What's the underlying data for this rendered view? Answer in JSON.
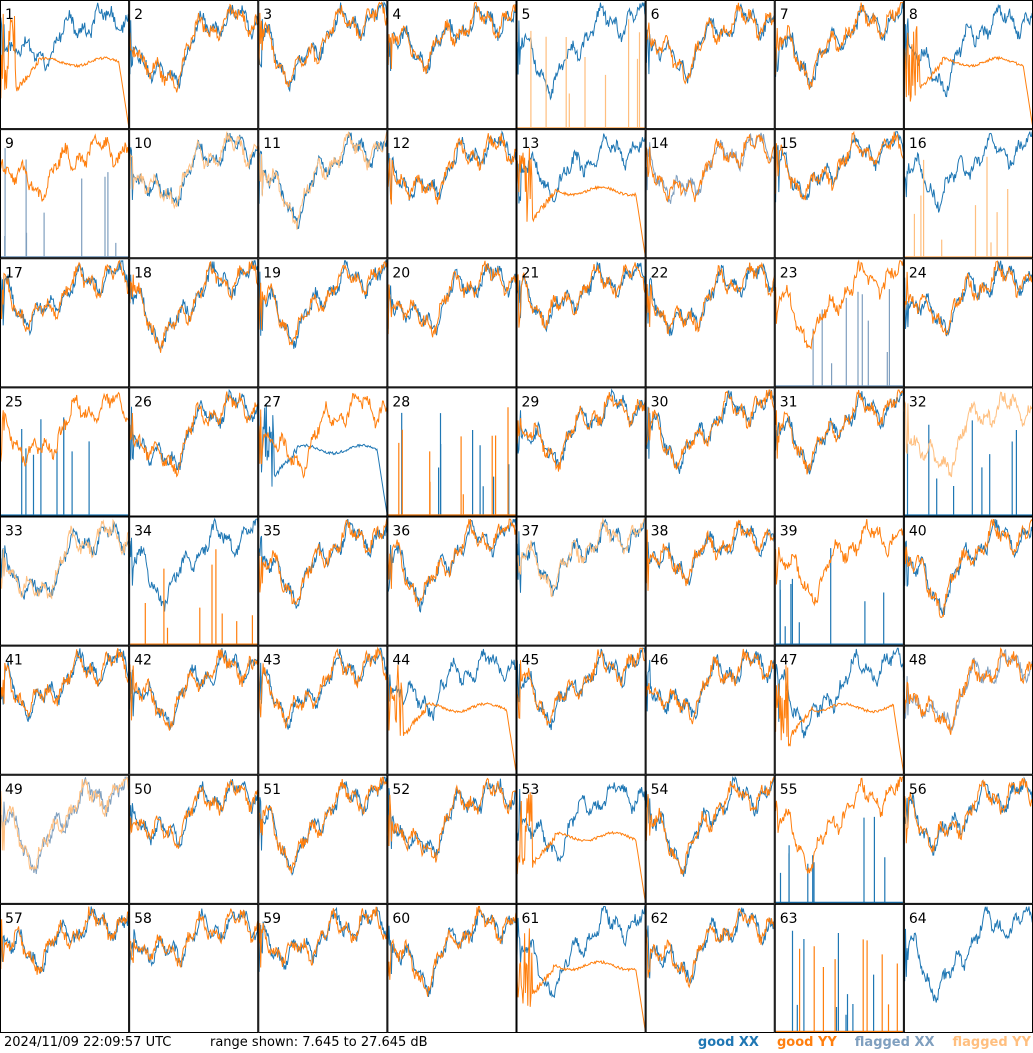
{
  "chart_data": {
    "type": "line",
    "panel_numbers": [
      "1",
      "2",
      "3",
      "4",
      "5",
      "6",
      "7",
      "8",
      "9",
      "10",
      "11",
      "12",
      "13",
      "14",
      "15",
      "16",
      "17",
      "18",
      "19",
      "20",
      "21",
      "22",
      "23",
      "24",
      "25",
      "26",
      "27",
      "28",
      "29",
      "30",
      "31",
      "32",
      "33",
      "34",
      "35",
      "36",
      "37",
      "38",
      "39",
      "40",
      "41",
      "42",
      "43",
      "44",
      "45",
      "46",
      "47",
      "48",
      "49",
      "50",
      "51",
      "52",
      "53",
      "54",
      "55",
      "56",
      "57",
      "58",
      "59",
      "60",
      "61",
      "62",
      "63",
      "64"
    ],
    "grid": {
      "rows": 8,
      "cols": 8
    },
    "ylim": [
      7.645,
      27.645
    ],
    "series": [
      {
        "name": "good XX",
        "color": "#1f77b4"
      },
      {
        "name": "good YY",
        "color": "#ff7f0e"
      },
      {
        "name": "flagged XX",
        "color": "#7f9fbf"
      },
      {
        "name": "flagged YY",
        "color": "#ffbf7f"
      }
    ],
    "panel_state": {
      "1": {
        "xx": "good",
        "yy": "broken"
      },
      "5": {
        "xx": "good",
        "yy": "flagged-spiky"
      },
      "8": {
        "xx": "good",
        "yy": "broken"
      },
      "9": {
        "xx": "flagged-spiky",
        "yy": "good"
      },
      "10": {
        "xx": "good",
        "yy": "flagged"
      },
      "11": {
        "xx": "good",
        "yy": "flagged"
      },
      "12": {
        "xx": "good",
        "yy": "good"
      },
      "13": {
        "xx": "good",
        "yy": "broken"
      },
      "14": {
        "xx": "flagged",
        "yy": "good"
      },
      "16": {
        "xx": "good",
        "yy": "flagged-spiky"
      },
      "23": {
        "xx": "flagged-spiky",
        "yy": "good"
      },
      "25": {
        "xx": "spiky",
        "yy": "good"
      },
      "27": {
        "xx": "broken",
        "yy": "good"
      },
      "28": {
        "xx": "spiky",
        "yy": "spiky"
      },
      "32": {
        "xx": "spiky",
        "yy": "flagged"
      },
      "33": {
        "xx": "good",
        "yy": "flagged"
      },
      "34": {
        "xx": "good",
        "yy": "spiky"
      },
      "37": {
        "xx": "good",
        "yy": "flagged"
      },
      "39": {
        "xx": "spiky",
        "yy": "good"
      },
      "44": {
        "xx": "good",
        "yy": "broken"
      },
      "47": {
        "xx": "good",
        "yy": "broken"
      },
      "48": {
        "xx": "flagged",
        "yy": "good"
      },
      "49": {
        "xx": "flagged",
        "yy": "flagged"
      },
      "53": {
        "xx": "good",
        "yy": "broken"
      },
      "55": {
        "xx": "spiky",
        "yy": "good"
      },
      "61": {
        "xx": "good",
        "yy": "broken"
      },
      "63": {
        "xx": "spiky",
        "yy": "spiky"
      },
      "64": {
        "xx": "good",
        "yy": "none"
      }
    }
  },
  "footer": {
    "timestamp": "2024/11/09 22:09:57 UTC",
    "range_text": "range shown: 7.645 to 27.645 dB"
  },
  "legend": [
    {
      "label": "good XX",
      "color": "#1f77b4"
    },
    {
      "label": "good YY",
      "color": "#ff7f0e"
    },
    {
      "label": "flagged XX",
      "color": "#7f9fbf"
    },
    {
      "label": "flagged YY",
      "color": "#ffbf7f"
    }
  ]
}
